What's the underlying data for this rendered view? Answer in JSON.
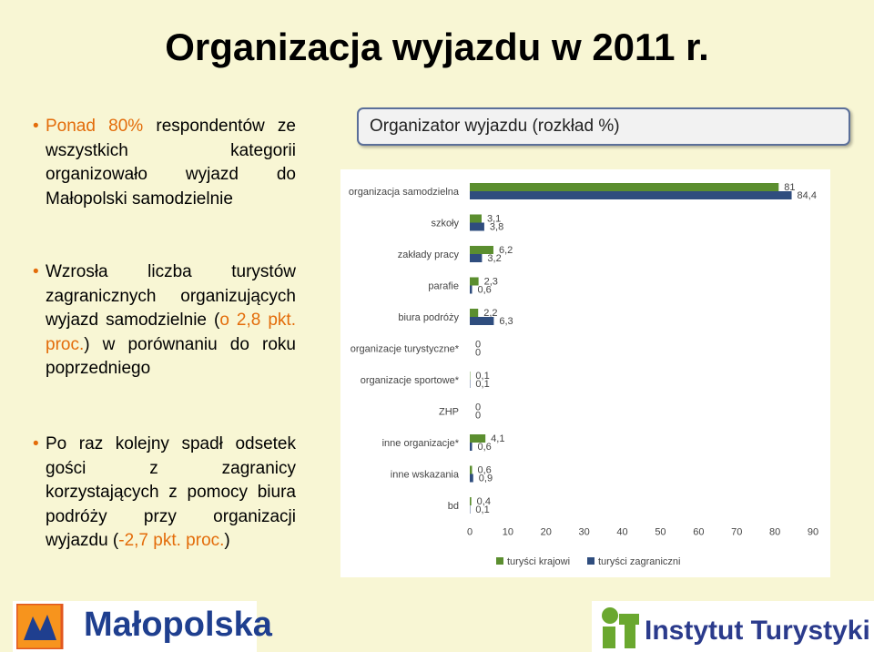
{
  "page": {
    "title": "Organizacja wyjazdu w 2011 r."
  },
  "bullets": [
    {
      "parts": [
        {
          "text": "Ponad 80%",
          "hl": true
        },
        {
          "text": " respondentów ze wszystkich kategorii organizowało wyjazd do Małopolski samodzielnie",
          "hl": false
        }
      ]
    },
    {
      "parts": [
        {
          "text": "Wzrosła liczba turystów zagranicznych organizujących wyjazd samodzielnie (",
          "hl": false
        },
        {
          "text": "o 2,8 pkt. proc.",
          "hl": true
        },
        {
          "text": ") w porównaniu do roku poprzedniego",
          "hl": false
        }
      ]
    },
    {
      "parts": [
        {
          "text": "Po raz kolejny spadł odsetek gości z zagranicy korzystających z pomocy biura podróży przy organizacji wyjazdu (",
          "hl": false
        },
        {
          "text": "-2,7 pkt. proc.",
          "hl": true
        },
        {
          "text": ")",
          "hl": false
        }
      ]
    }
  ],
  "chart_title": "Organizator wyjazdu (rozkład %)",
  "chart_data": {
    "type": "bar",
    "orientation": "horizontal",
    "categories": [
      "organizacja samodzielna",
      "szkoły",
      "zakłady pracy",
      "parafie",
      "biura podróży",
      "organizacje turystyczne*",
      "organizacje sportowe*",
      "ZHP",
      "inne organizacje*",
      "inne wskazania",
      "bd"
    ],
    "series": [
      {
        "name": "turyści krajowi",
        "color": "#5b8e2f",
        "values": [
          81,
          3.1,
          6.2,
          2.3,
          2.2,
          0,
          0.1,
          0,
          4.1,
          0.6,
          0.4
        ],
        "labels": [
          "81",
          "3,1",
          "6,2",
          "2,3",
          "2,2",
          "0",
          "0,1",
          "0",
          "4,1",
          "0,6",
          "0,4"
        ]
      },
      {
        "name": "turyści zagraniczni",
        "color": "#2f4d7e",
        "values": [
          84.4,
          3.8,
          3.2,
          0.6,
          6.3,
          0,
          0.1,
          0,
          0.6,
          0.9,
          0.1
        ],
        "labels": [
          "84,4",
          "3,8",
          "3,2",
          "0,6",
          "6,3",
          "0",
          "0,1",
          "0",
          "0,6",
          "0,9",
          "0,1"
        ]
      }
    ],
    "xlim": [
      0,
      90
    ],
    "xticks": [
      "0",
      "10",
      "20",
      "30",
      "40",
      "50",
      "60",
      "70",
      "80",
      "90"
    ],
    "legend_position": "bottom",
    "grid": false
  },
  "footer": {
    "left_logo": "Małopolska",
    "right_logo": "Instytut Turystyki"
  }
}
